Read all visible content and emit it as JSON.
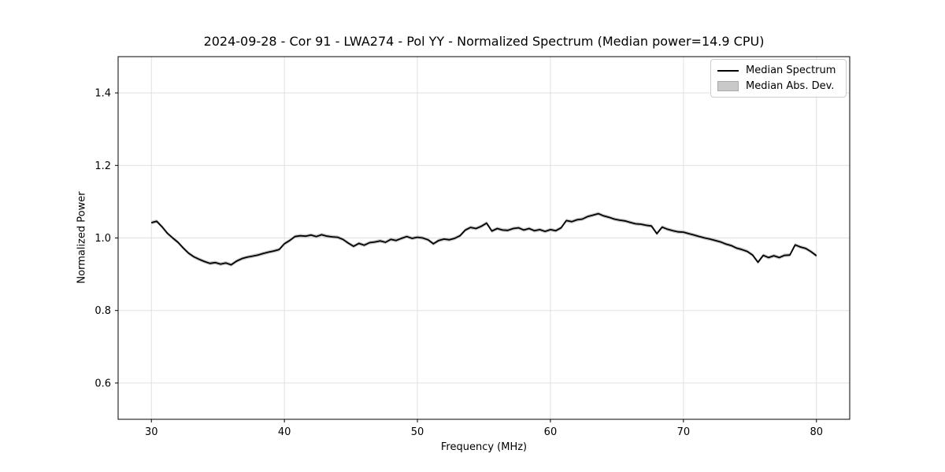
{
  "figure": {
    "title": "2024-09-28 - Cor 91 - LWA274 - Pol YY - Normalized Spectrum (Median power=14.9 CPU)"
  },
  "chart_data": {
    "type": "line",
    "title": "2024-09-28 - Cor 91 - LWA274 - Pol YY - Normalized Spectrum (Median power=14.9 CPU)",
    "xlabel": "Frequency (MHz)",
    "ylabel": "Normalized Power",
    "xlim": [
      27.5,
      82.5
    ],
    "ylim": [
      0.5,
      1.5
    ],
    "xticks": [
      30,
      40,
      50,
      60,
      70,
      80
    ],
    "xtick_labels": [
      "30",
      "40",
      "50",
      "60",
      "70",
      "80"
    ],
    "yticks": [
      0.6,
      0.8,
      1.0,
      1.2,
      1.4
    ],
    "ytick_labels": [
      "0.6",
      "0.8",
      "1.0",
      "1.2",
      "1.4"
    ],
    "grid": true,
    "legend_position": "upper right",
    "legend": [
      {
        "label": "Median Spectrum",
        "swatch": "line",
        "color": "#000000"
      },
      {
        "label": "Median Abs. Dev.",
        "swatch": "patch",
        "color": "#c9c9c9"
      }
    ],
    "mad_halfwidth": 0.005,
    "colors": {
      "line": "#000000",
      "band": "#c9c9c9",
      "grid": "#e0e0e0",
      "spine": "#000000",
      "background": "#ffffff",
      "text": "#000000"
    },
    "series": [
      {
        "name": "Median Spectrum",
        "x_start": 30.0,
        "x_step": 0.4,
        "values": [
          1.042,
          1.046,
          1.031,
          1.013,
          1.0,
          0.988,
          0.972,
          0.958,
          0.948,
          0.941,
          0.935,
          0.93,
          0.932,
          0.928,
          0.931,
          0.926,
          0.936,
          0.943,
          0.947,
          0.95,
          0.953,
          0.957,
          0.961,
          0.964,
          0.968,
          0.984,
          0.993,
          1.004,
          1.006,
          1.005,
          1.008,
          1.004,
          1.009,
          1.005,
          1.003,
          1.002,
          0.996,
          0.986,
          0.977,
          0.985,
          0.98,
          0.987,
          0.989,
          0.992,
          0.988,
          0.996,
          0.993,
          0.999,
          1.004,
          0.999,
          1.002,
          1.0,
          0.995,
          0.984,
          0.993,
          0.997,
          0.995,
          0.999,
          1.006,
          1.022,
          1.029,
          1.026,
          1.032,
          1.041,
          1.019,
          1.026,
          1.022,
          1.021,
          1.026,
          1.028,
          1.022,
          1.026,
          1.02,
          1.023,
          1.018,
          1.023,
          1.02,
          1.028,
          1.048,
          1.045,
          1.05,
          1.052,
          1.059,
          1.063,
          1.067,
          1.061,
          1.057,
          1.052,
          1.049,
          1.047,
          1.043,
          1.039,
          1.038,
          1.035,
          1.033,
          1.012,
          1.03,
          1.024,
          1.02,
          1.017,
          1.016,
          1.012,
          1.008,
          1.004,
          1.0,
          0.997,
          0.993,
          0.989,
          0.983,
          0.979,
          0.972,
          0.968,
          0.963,
          0.953,
          0.933,
          0.952,
          0.946,
          0.951,
          0.946,
          0.952,
          0.953,
          0.981,
          0.975,
          0.971,
          0.962,
          0.951
        ]
      }
    ]
  }
}
